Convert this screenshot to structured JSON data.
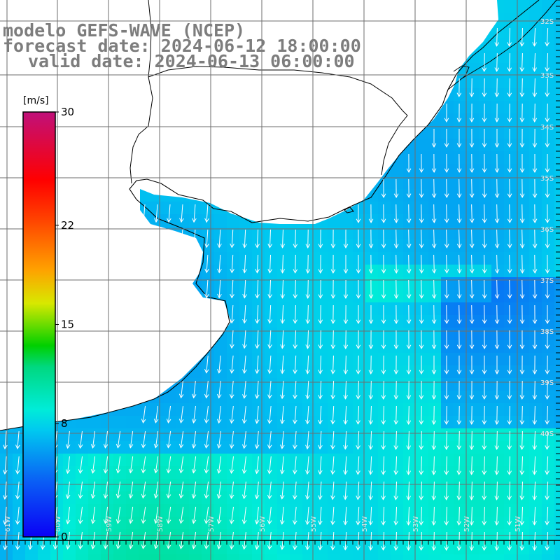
{
  "title": {
    "line1": "modelo GEFS-WAVE (NCEP)",
    "line2": "forecast date: 2024-06-12 18:00:00",
    "line3": "valid date: 2024-06-13 06:00:00"
  },
  "colorbar": {
    "unit": "[m/s]",
    "min": 0,
    "max": 30,
    "ticks": [
      "30",
      "22",
      "15",
      "8",
      "0"
    ],
    "tick_values": [
      30,
      22,
      15,
      8,
      0
    ]
  },
  "axes": {
    "lat_labels": [
      "32S",
      "33S",
      "34S",
      "35S",
      "36S",
      "37S",
      "38S",
      "39S",
      "40S"
    ],
    "lon_labels": [
      "61W",
      "60W",
      "59W",
      "58W",
      "57W",
      "56W",
      "55W",
      "54W",
      "53W",
      "52W",
      "51W"
    ]
  },
  "colors": {
    "land": "#ffffff",
    "coastline": "#000000",
    "grid": "#6e6e6e",
    "arrows": "#ffffff"
  },
  "field": {
    "variable": "wind speed",
    "arrow_direction": "mostly southward / south-westward",
    "typical_speed_range_m_s": [
      5,
      10
    ]
  }
}
